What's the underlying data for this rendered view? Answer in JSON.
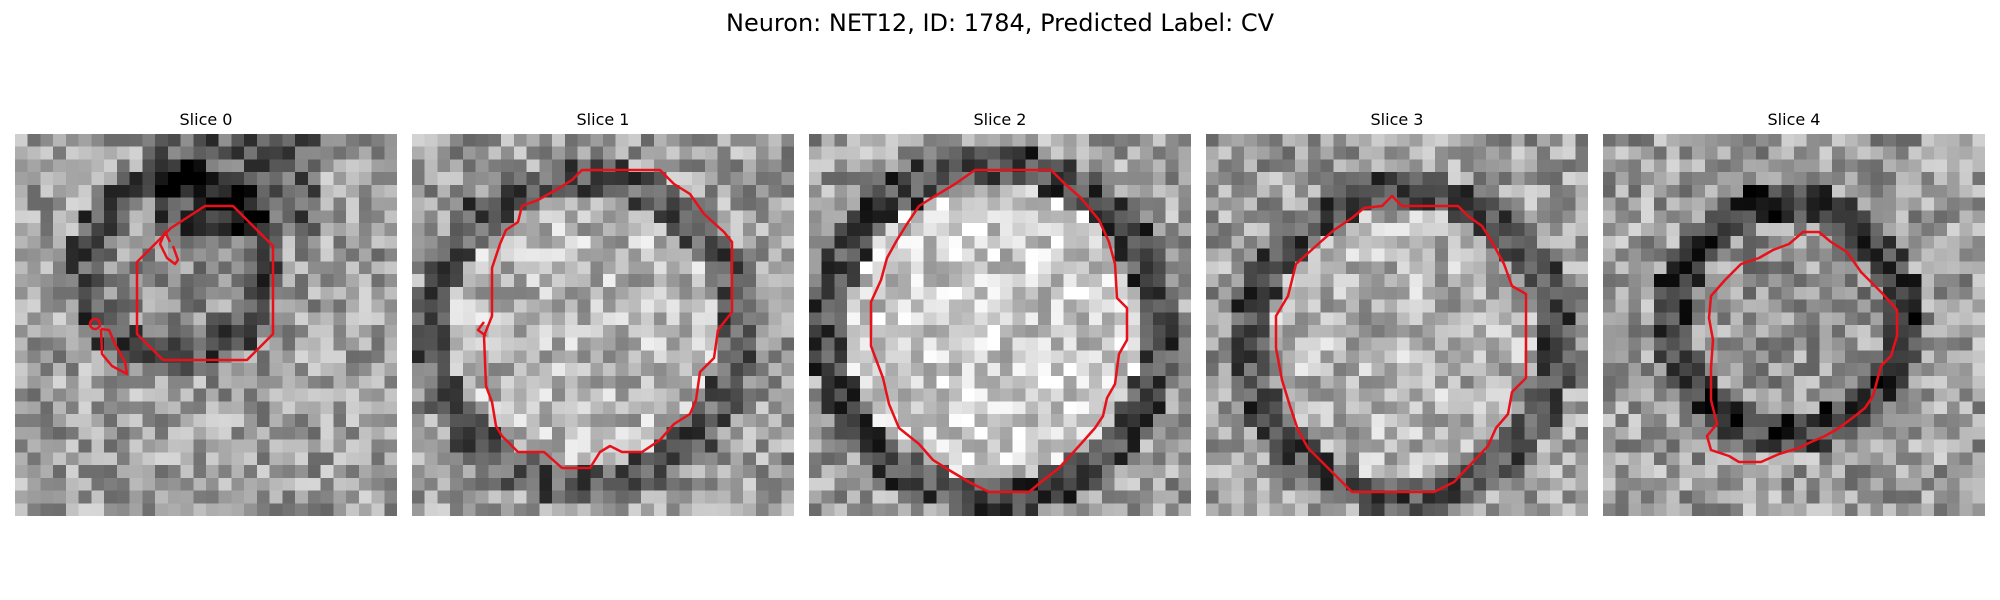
{
  "figure": {
    "title": "Neuron: NET12, ID: 1784, Predicted Label: CV"
  },
  "panels": [
    {
      "title": "Slice 0"
    },
    {
      "title": "Slice 1"
    },
    {
      "title": "Slice 2"
    },
    {
      "title": "Slice 3"
    },
    {
      "title": "Slice 4"
    }
  ],
  "colors": {
    "contour": "#e8111a",
    "background": "#ffffff"
  }
}
